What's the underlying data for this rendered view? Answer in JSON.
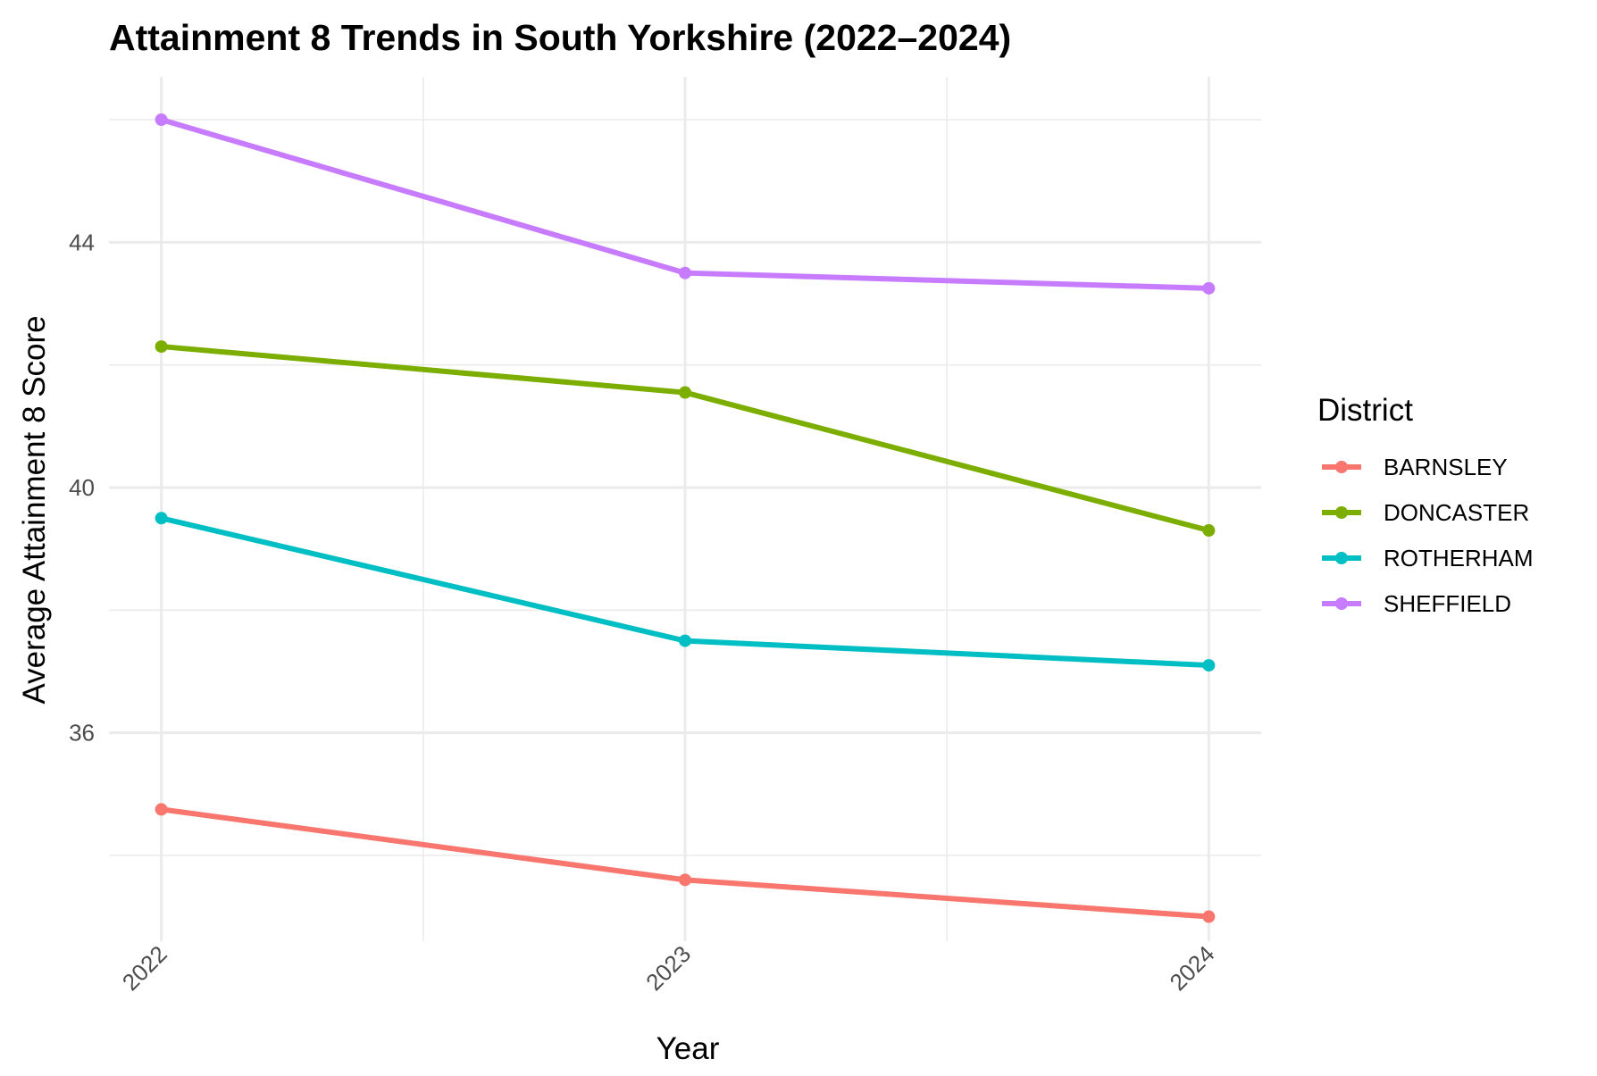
{
  "chart_data": {
    "type": "line",
    "title": "Attainment 8 Trends in South Yorkshire (2022–2024)",
    "xlabel": "Year",
    "ylabel": "Average Attainment 8 Score",
    "x": [
      2022,
      2023,
      2024
    ],
    "x_tick_labels": [
      "2022",
      "2023",
      "2024"
    ],
    "y_ticks": [
      36,
      40,
      44
    ],
    "y_tick_labels": [
      "36",
      "40",
      "44"
    ],
    "ylim": [
      32.6,
      46.7
    ],
    "xlim": [
      2021.9,
      2024.1
    ],
    "grid": true,
    "legend_position": "right",
    "legend_title": "District",
    "series": [
      {
        "name": "BARNSLEY",
        "color": "#F8766D",
        "values": [
          34.75,
          33.6,
          33.0
        ]
      },
      {
        "name": "DONCASTER",
        "color": "#7CAE00",
        "values": [
          42.3,
          41.55,
          39.3
        ]
      },
      {
        "name": "ROTHERHAM",
        "color": "#00BFC4",
        "values": [
          39.5,
          37.5,
          37.1
        ]
      },
      {
        "name": "SHEFFIELD",
        "color": "#C77CFF",
        "values": [
          46.0,
          43.5,
          43.25
        ]
      }
    ]
  }
}
